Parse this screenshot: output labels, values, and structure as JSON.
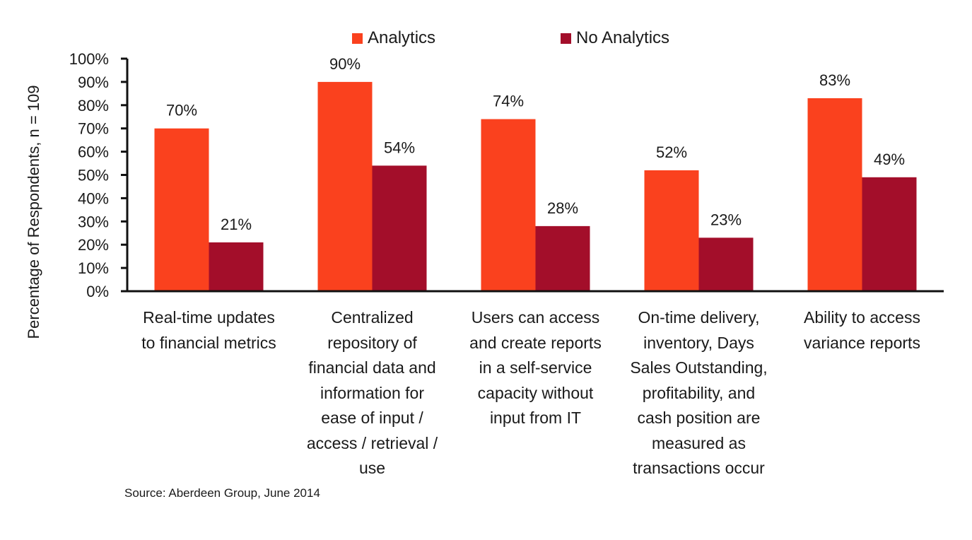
{
  "chart_data": {
    "type": "bar",
    "title": "",
    "xlabel": "",
    "ylabel": "Percentage of Respondents, n = 109",
    "ylim": [
      0,
      100
    ],
    "y_ticks": [
      "0%",
      "10%",
      "20%",
      "30%",
      "40%",
      "50%",
      "60%",
      "70%",
      "80%",
      "90%",
      "100%"
    ],
    "y_tick_values": [
      0,
      10,
      20,
      30,
      40,
      50,
      60,
      70,
      80,
      90,
      100
    ],
    "grid": false,
    "legend_position": "top",
    "categories": [
      "Real-time updates\nto financial metrics",
      "Centralized\nrepository of\nfinancial data and\ninformation for\nease of input /\naccess / retrieval /\nuse",
      "Users can access\nand create reports\nin a self-service\ncapacity without\ninput from IT",
      "On-time delivery,\ninventory, Days\nSales Outstanding,\nprofitability, and\ncash position are\nmeasured as\ntransactions occur",
      "Ability to access\nvariance reports"
    ],
    "series": [
      {
        "name": "Analytics",
        "color": "#fa411e",
        "values": [
          70,
          90,
          74,
          52,
          83
        ],
        "labels": [
          "70%",
          "90%",
          "74%",
          "52%",
          "83%"
        ]
      },
      {
        "name": "No Analytics",
        "color": "#a30e2a",
        "values": [
          21,
          54,
          28,
          23,
          49
        ],
        "labels": [
          "21%",
          "54%",
          "28%",
          "23%",
          "49%"
        ]
      }
    ],
    "source": "Source: Aberdeen Group, June 2014"
  }
}
